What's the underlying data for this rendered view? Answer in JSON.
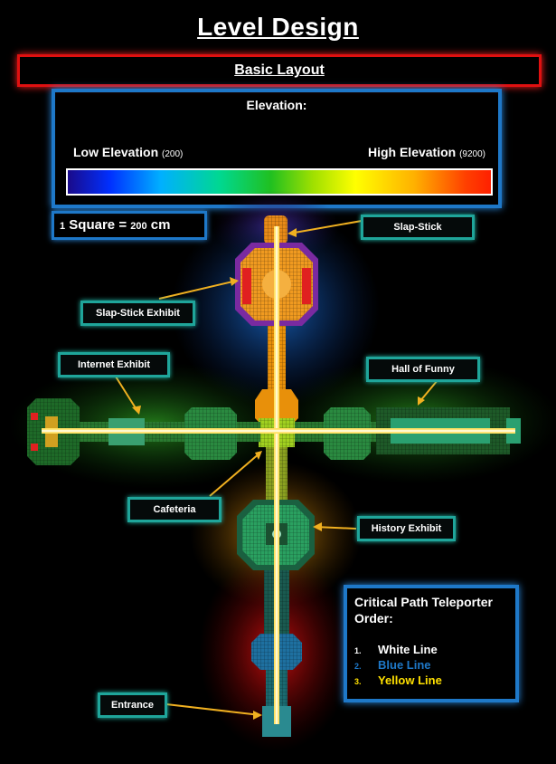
{
  "title": "Level Design",
  "subtitle": "Basic Layout",
  "elevation": {
    "title": "Elevation:",
    "low_label": "Low Elevation",
    "low_value": "(200)",
    "high_label": "High Elevation",
    "high_value": "(9200)"
  },
  "scale": {
    "number": "1",
    "text": "Square = ",
    "value": "200",
    "unit": "cm"
  },
  "labels": {
    "slap_stick": "Slap-Stick",
    "slap_stick_exhibit": "Slap-Stick Exhibit",
    "internet_exhibit": "Internet Exhibit",
    "hall_of_funny": "Hall of Funny",
    "cafeteria": "Cafeteria",
    "history_exhibit": "History Exhibit",
    "entrance": "Entrance"
  },
  "legend": {
    "title": "Critical Path Teleporter Order:",
    "items": [
      {
        "num": "1.",
        "text": "White Line",
        "color": "#ffffff"
      },
      {
        "num": "2.",
        "text": "Blue Line",
        "color": "#1e78c8"
      },
      {
        "num": "3.",
        "text": "Yellow Line",
        "color": "#ffe000"
      }
    ]
  },
  "colors": {
    "label_border": "#1fa59a",
    "box_border": "#1e78c8",
    "subtitle_border": "#e01010",
    "arrow": "#f0b020"
  }
}
